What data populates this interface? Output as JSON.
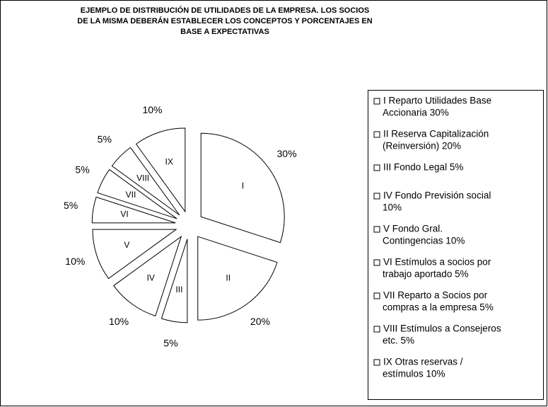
{
  "chart_data": {
    "type": "pie",
    "title": [
      "EJEMPLO DE DISTRIBUCIÓN DE UTILIDADES DE LA EMPRESA. LOS SOCIOS",
      "DE LA MISMA DEBERÁN ESTABLECER LOS CONCEPTOS Y PORCENTAJES EN",
      "BASE A EXPECTATIVAS"
    ],
    "categories": [
      "I",
      "II",
      "III",
      "IV",
      "V",
      "VI",
      "VII",
      "VIII",
      "IX"
    ],
    "values": [
      30,
      20,
      5,
      10,
      10,
      5,
      5,
      5,
      10
    ],
    "value_labels": [
      "30%",
      "20%",
      "5%",
      "10%",
      "10%",
      "5%",
      "5%",
      "5%",
      "10%"
    ],
    "legend": [
      [
        "I Reparto Utilidades Base",
        "Accionaria  30%"
      ],
      [
        "II Reserva Capitalización",
        "(Reinversión)  20%"
      ],
      [
        "III Fondo Legal  5%"
      ],
      [
        "IV  Fondo Previsión social",
        "10%"
      ],
      [
        "V  Fondo Gral.",
        "Contingencias  10%"
      ],
      [
        "VI  Estímulos a socios por",
        "trabajo aportado  5%"
      ],
      [
        "VII  Reparto a Socios por",
        "compras a la empresa  5%"
      ],
      [
        "VIII  Estímulos a Consejeros",
        "etc.  5%"
      ],
      [
        "IX  Otras reservas /",
        "estímulos    10%"
      ]
    ],
    "color": "#ffffff",
    "edge_color": "#000000"
  }
}
